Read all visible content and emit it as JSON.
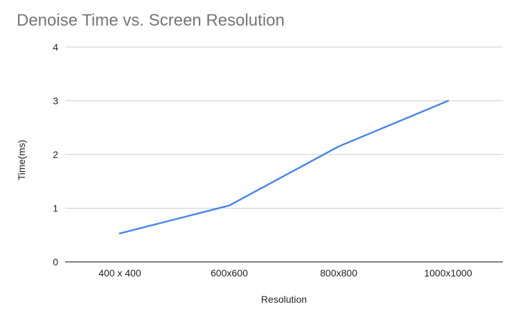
{
  "chart_data": {
    "type": "line",
    "title": "Denoise Time vs. Screen Resolution",
    "xlabel": "Resolution",
    "ylabel": "Time(ms)",
    "categories": [
      "400 x 400",
      "600x600",
      "800x800",
      "1000x1000"
    ],
    "series": [
      {
        "values": [
          0.53,
          1.05,
          2.15,
          3.0
        ],
        "color": "#4a86e8"
      }
    ],
    "ylim": [
      0,
      4
    ],
    "yticks": [
      "0",
      "1",
      "2",
      "3",
      "4"
    ],
    "grid": true,
    "legend": "none"
  }
}
